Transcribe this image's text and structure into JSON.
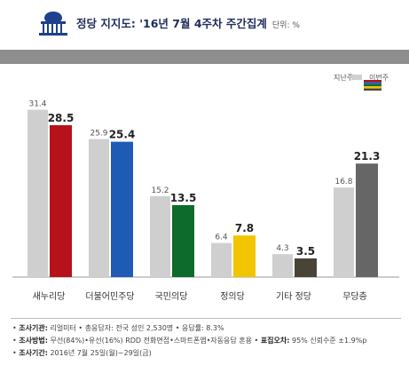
{
  "header": {
    "title": "정당 지지도: '16년 7월 4주차 주간집계",
    "unit": "단위: %"
  },
  "legend": {
    "prev_label": "지난주",
    "curr_label": "이번주"
  },
  "colors": {
    "prev": "#cfcfcf",
    "saenuri": "#b5121b",
    "minjoo": "#1e5bb5",
    "kookmin": "#0d6b2b",
    "justice": "#f1c500",
    "other": "#4a4436",
    "none": "#666666"
  },
  "chart_data": {
    "type": "bar",
    "categories": [
      "새누리당",
      "더불어민주당",
      "국민의당",
      "정의당",
      "기타 정당",
      "무당층"
    ],
    "series": [
      {
        "name": "지난주",
        "values": [
          31.4,
          25.9,
          15.2,
          6.4,
          4.3,
          16.8
        ]
      },
      {
        "name": "이번주",
        "values": [
          28.5,
          25.4,
          13.5,
          7.8,
          3.5,
          21.3
        ]
      }
    ],
    "value_labels_prev": [
      "31.4",
      "25.9",
      "15.2",
      "6.4",
      "4.3",
      "16.8"
    ],
    "value_labels_curr": [
      "28.5",
      "25.4",
      "13.5",
      "7.8",
      "3.5",
      "21.3"
    ],
    "ylim": [
      0,
      35
    ],
    "grid": false,
    "legend_position": "top-right"
  },
  "footer": {
    "line1_label": "조사기관:",
    "line1_text": "리얼미터 • 총응답자: 전국 성인 2,530명 • 응답률: 8.3%",
    "line2_label": "조사방법:",
    "line2_text": "무선(84%)•유선(16%) RDD 전화면접•스마트폰앱•자동응답 혼용 •",
    "line2_label2": "표집오차:",
    "line2_text2": "95% 신뢰수준 ±1.9%p",
    "line3_label": "조사기간:",
    "line3_text": "2016년 7월 25일(월)~29일(금)"
  }
}
